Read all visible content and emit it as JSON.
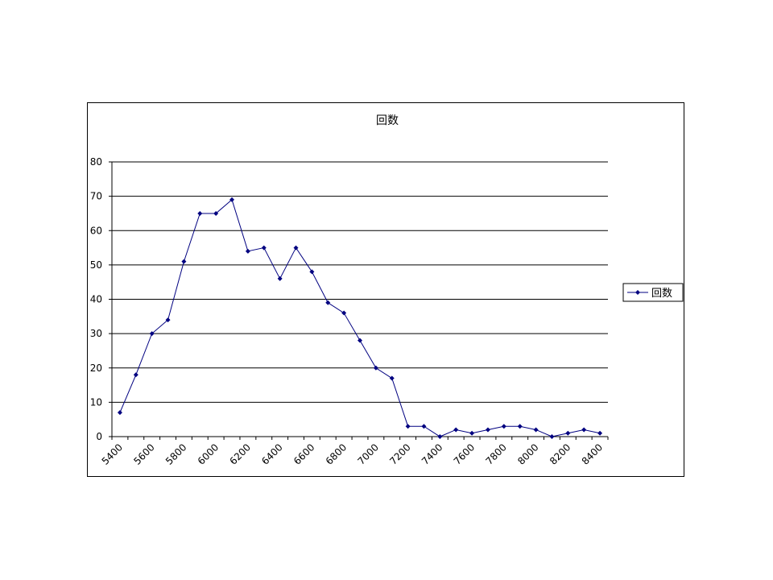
{
  "chart_data": {
    "type": "line",
    "title": "回数",
    "xlabel": "",
    "ylabel": "",
    "x": [
      5400,
      5500,
      5600,
      5700,
      5800,
      5900,
      6000,
      6100,
      6200,
      6300,
      6400,
      6500,
      6600,
      6700,
      6800,
      6900,
      7000,
      7100,
      7200,
      7300,
      7400,
      7500,
      7600,
      7700,
      7800,
      7900,
      8000,
      8100,
      8200,
      8300,
      8400
    ],
    "x_tick_labels": [
      "5400",
      "5600",
      "5800",
      "6000",
      "6200",
      "6400",
      "6600",
      "6800",
      "7000",
      "7200",
      "7400",
      "7600",
      "7800",
      "8000",
      "8200",
      "8400"
    ],
    "y_tick_labels": [
      "0",
      "10",
      "20",
      "30",
      "40",
      "50",
      "60",
      "70",
      "80"
    ],
    "ylim": [
      0,
      80
    ],
    "grid": true,
    "legend_position": "right",
    "series": [
      {
        "name": "回数",
        "color": "#000080",
        "values": [
          7,
          18,
          30,
          34,
          51,
          65,
          65,
          69,
          54,
          55,
          46,
          55,
          48,
          39,
          36,
          28,
          20,
          17,
          3,
          3,
          0,
          2,
          1,
          2,
          3,
          3,
          2,
          0,
          1,
          2,
          1
        ]
      }
    ]
  }
}
